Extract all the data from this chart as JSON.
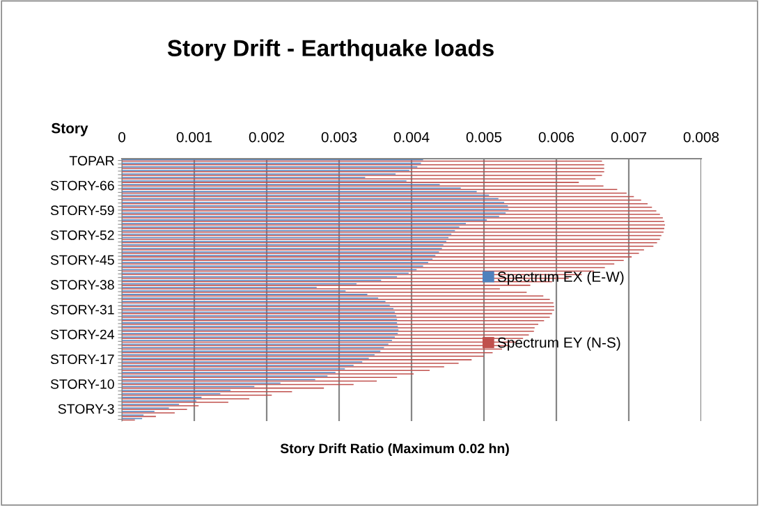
{
  "chart_data": {
    "type": "bar",
    "orientation": "horizontal",
    "title": "Story Drift - Earthquake loads",
    "ylabel": "Story",
    "xlabel": "Story Drift Ratio (Maximum 0.02 hn)",
    "categories": [
      "TOPAR",
      null,
      null,
      null,
      null,
      null,
      null,
      "STORY-66",
      null,
      null,
      null,
      null,
      null,
      null,
      "STORY-59",
      null,
      null,
      null,
      null,
      null,
      null,
      "STORY-52",
      null,
      null,
      null,
      null,
      null,
      null,
      "STORY-45",
      null,
      null,
      null,
      null,
      null,
      null,
      "STORY-38",
      null,
      null,
      null,
      null,
      null,
      null,
      "STORY-31",
      null,
      null,
      null,
      null,
      null,
      null,
      "STORY-24",
      null,
      null,
      null,
      null,
      null,
      null,
      "STORY-17",
      null,
      null,
      null,
      null,
      null,
      null,
      "STORY-10",
      null,
      null,
      null,
      null,
      null,
      null,
      "STORY-3",
      null,
      null,
      null
    ],
    "series": [
      {
        "name": "Spectrum EX (E-W)",
        "color": "#4f81bd",
        "values": [
          0.00416,
          0.00413,
          0.00408,
          0.00397,
          0.00378,
          0.00336,
          0.00393,
          0.00439,
          0.00468,
          0.0049,
          0.00507,
          0.0052,
          0.00528,
          0.00533,
          0.00534,
          0.0053,
          0.00521,
          0.00504,
          0.00475,
          0.00466,
          0.0046,
          0.00455,
          0.00451,
          0.00448,
          0.00444,
          0.00442,
          0.00438,
          0.00433,
          0.00429,
          0.00423,
          0.00416,
          0.00407,
          0.00396,
          0.0038,
          0.00358,
          0.00324,
          0.00269,
          0.00309,
          0.00339,
          0.00354,
          0.00364,
          0.0037,
          0.00375,
          0.00377,
          0.00379,
          0.0038,
          0.0038,
          0.00381,
          0.00382,
          0.00381,
          0.00377,
          0.00373,
          0.00368,
          0.00362,
          0.00357,
          0.00349,
          0.00341,
          0.00332,
          0.0032,
          0.00308,
          0.00295,
          0.00284,
          0.00267,
          0.00219,
          0.00183,
          0.0015,
          0.00136,
          0.0011,
          0.00103,
          0.00079,
          0.00065,
          0.00045,
          0.0003,
          0.00028
        ]
      },
      {
        "name": "Spectrum EY (N-S)",
        "color": "#c0504d",
        "values": [
          0.00663,
          0.00666,
          0.00666,
          0.00666,
          0.00663,
          0.00654,
          0.00631,
          0.00665,
          0.00684,
          0.00697,
          0.00707,
          0.00717,
          0.00726,
          0.00732,
          0.00738,
          0.00743,
          0.00747,
          0.00749,
          0.0075,
          0.00749,
          0.00748,
          0.00745,
          0.00743,
          0.00739,
          0.00734,
          0.00721,
          0.00714,
          0.00704,
          0.00693,
          0.0068,
          0.00667,
          0.00652,
          0.00635,
          0.00617,
          0.00594,
          0.00564,
          0.00522,
          0.00559,
          0.00582,
          0.00591,
          0.00596,
          0.00597,
          0.00597,
          0.00594,
          0.00591,
          0.00583,
          0.00575,
          0.0057,
          0.00569,
          0.00562,
          0.00554,
          0.00545,
          0.00535,
          0.00525,
          0.00512,
          0.005,
          0.00483,
          0.00465,
          0.00445,
          0.00425,
          0.00403,
          0.0038,
          0.00352,
          0.0032,
          0.00279,
          0.00235,
          0.00207,
          0.00176,
          0.00147,
          0.00106,
          0.0009,
          0.00073,
          0.00047,
          0.00018
        ]
      }
    ],
    "xlim": [
      0,
      0.008
    ],
    "xticks": [
      0,
      0.001,
      0.002,
      0.003,
      0.004,
      0.005,
      0.006,
      0.007,
      0.008
    ],
    "grid": "x",
    "legend": "right"
  }
}
